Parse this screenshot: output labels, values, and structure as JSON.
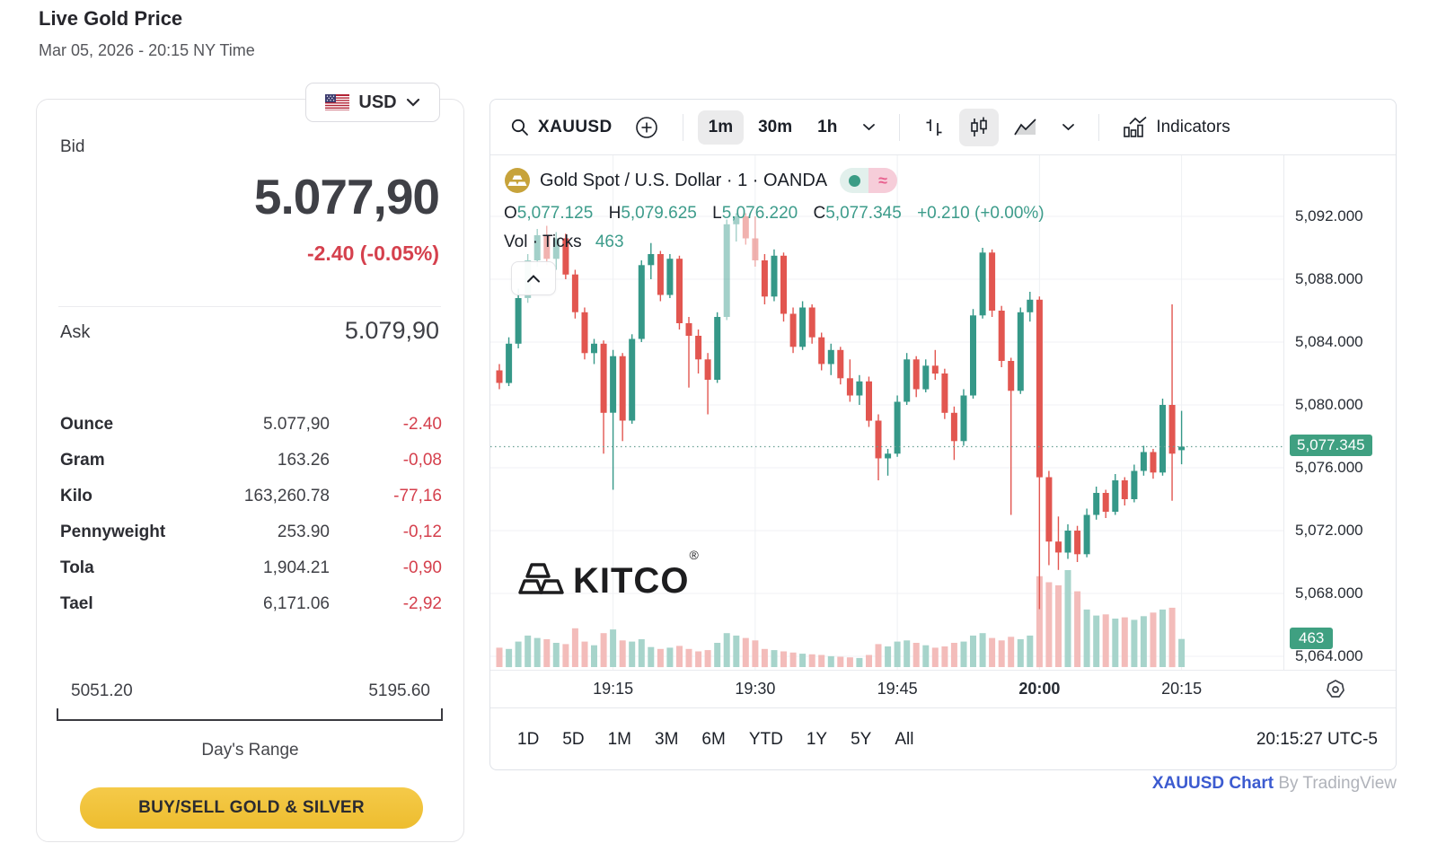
{
  "header": {
    "title": "Live Gold Price",
    "date": "Mar 05, 2026 - 20:15 NY Time"
  },
  "currency_selector": {
    "code": "USD"
  },
  "quote": {
    "bid_label": "Bid",
    "bid": "5.077,90",
    "change": "-2.40 (-0.05%)",
    "ask_label": "Ask",
    "ask": "5.079,90",
    "units": [
      {
        "label": "Ounce",
        "value": "5.077,90",
        "change": "-2.40"
      },
      {
        "label": "Gram",
        "value": "163.26",
        "change": "-0,08"
      },
      {
        "label": "Kilo",
        "value": "163,260.78",
        "change": "-77,16"
      },
      {
        "label": "Pennyweight",
        "value": "253.90",
        "change": "-0,12"
      },
      {
        "label": "Tola",
        "value": "1,904.21",
        "change": "-0,90"
      },
      {
        "label": "Tael",
        "value": "6,171.06",
        "change": "-2,92"
      }
    ],
    "range_low": "5051.20",
    "range_high": "5195.60",
    "range_label": "Day's Range",
    "buy_button": "BUY/SELL GOLD & SILVER"
  },
  "chart_widget": {
    "toolbar": {
      "symbol": "XAUUSD",
      "intervals": [
        "1m",
        "30m",
        "1h"
      ],
      "active_interval": "1m",
      "indicators_label": "Indicators"
    },
    "legend": {
      "title": "Gold Spot / U.S. Dollar · 1 · OANDA",
      "o_label": "O",
      "o": "5,077.125",
      "h_label": "H",
      "h": "5,079.625",
      "l_label": "L",
      "l": "5,076.220",
      "c_label": "C",
      "c": "5,077.345",
      "change": "+0.210 (+0.00%)",
      "vol_label": "Vol · Ticks",
      "vol": "463"
    },
    "watermark": "KITCO",
    "ranges": [
      "1D",
      "5D",
      "1M",
      "3M",
      "6M",
      "YTD",
      "1Y",
      "5Y",
      "All"
    ],
    "clock": "20:15:27 UTC-5",
    "attribution_link": "XAUUSD Chart",
    "attribution_rest": "By TradingView"
  },
  "chart_data": {
    "type": "candlestick",
    "symbol": "XAUUSD",
    "interval": "1m",
    "exchange": "OANDA",
    "title": "Gold Spot / U.S. Dollar",
    "y_axis": {
      "top": 5092,
      "bottom": 5064,
      "step": 4,
      "labels": [
        "5,092.000",
        "5,088.000",
        "5,084.000",
        "5,080.000",
        "5,076.000",
        "5,072.000",
        "5,068.000",
        "5,064.000"
      ]
    },
    "x_ticks": [
      {
        "index": 12,
        "label": "19:15"
      },
      {
        "index": 27,
        "label": "19:30"
      },
      {
        "index": 42,
        "label": "19:45"
      },
      {
        "index": 57,
        "label": "20:00",
        "bold": true
      },
      {
        "index": 72,
        "label": "20:15"
      }
    ],
    "last_price": 5077.345,
    "last_price_label": "5,077.345",
    "last_volume": 463,
    "last_volume_label": "463",
    "colors": {
      "up": "#359888",
      "down": "#e25650",
      "vol_up": "#a7d4cb",
      "vol_down": "#f3bcba",
      "badge": "#3fa081",
      "grid": "#f0f2f5",
      "current_line": "#68a094"
    },
    "candles": [
      [
        5082.2,
        5082.6,
        5081.0,
        5081.4,
        320
      ],
      [
        5081.4,
        5084.3,
        5081.2,
        5083.9,
        300
      ],
      [
        5083.9,
        5087.4,
        5083.6,
        5086.8,
        420
      ],
      [
        5086.8,
        5089.6,
        5086.5,
        5089.2,
        520,
        1
      ],
      [
        5089.2,
        5091.2,
        5088.8,
        5090.8,
        480,
        1
      ],
      [
        5090.8,
        5091.4,
        5088.9,
        5089.3,
        460,
        1
      ],
      [
        5089.3,
        5091.0,
        5088.6,
        5090.6,
        400,
        1
      ],
      [
        5090.6,
        5090.9,
        5088.0,
        5088.3,
        380
      ],
      [
        5088.3,
        5088.6,
        5085.5,
        5085.9,
        640
      ],
      [
        5085.9,
        5086.2,
        5082.9,
        5083.3,
        420
      ],
      [
        5083.3,
        5084.2,
        5082.6,
        5083.9,
        360
      ],
      [
        5083.9,
        5084.1,
        5076.9,
        5079.5,
        560
      ],
      [
        5079.5,
        5083.5,
        5074.6,
        5083.1,
        620
      ],
      [
        5083.1,
        5083.3,
        5077.7,
        5079.0,
        440
      ],
      [
        5079.0,
        5084.5,
        5078.8,
        5084.2,
        420
      ],
      [
        5084.2,
        5089.2,
        5084.0,
        5088.9,
        460
      ],
      [
        5088.9,
        5090.3,
        5088.0,
        5089.6,
        330
      ],
      [
        5089.6,
        5089.8,
        5086.6,
        5087.0,
        300
      ],
      [
        5087.0,
        5089.6,
        5086.8,
        5089.3,
        320
      ],
      [
        5089.3,
        5089.5,
        5084.8,
        5085.2,
        350
      ],
      [
        5085.2,
        5085.6,
        5081.1,
        5084.4,
        300
      ],
      [
        5084.4,
        5084.8,
        5082.0,
        5082.9,
        260
      ],
      [
        5082.9,
        5083.3,
        5079.4,
        5081.6,
        280
      ],
      [
        5081.6,
        5085.9,
        5081.4,
        5085.6,
        400
      ],
      [
        5085.6,
        5091.8,
        5085.4,
        5091.5,
        560,
        1
      ],
      [
        5091.5,
        5092.2,
        5090.4,
        5092.0,
        520,
        1
      ],
      [
        5092.0,
        5092.2,
        5090.2,
        5090.6,
        480,
        1
      ],
      [
        5090.6,
        5092.0,
        5088.8,
        5089.2,
        440,
        1
      ],
      [
        5089.2,
        5089.6,
        5086.4,
        5086.9,
        300
      ],
      [
        5086.9,
        5089.9,
        5086.6,
        5089.5,
        280
      ],
      [
        5089.5,
        5089.7,
        5085.3,
        5085.8,
        260
      ],
      [
        5085.8,
        5086.2,
        5083.3,
        5083.7,
        240
      ],
      [
        5083.7,
        5086.6,
        5083.5,
        5086.2,
        220
      ],
      [
        5086.2,
        5086.4,
        5083.9,
        5084.3,
        210
      ],
      [
        5084.3,
        5084.6,
        5082.2,
        5082.6,
        200
      ],
      [
        5082.6,
        5083.9,
        5081.9,
        5083.5,
        180
      ],
      [
        5083.5,
        5083.7,
        5081.3,
        5081.7,
        170
      ],
      [
        5081.7,
        5082.9,
        5080.2,
        5080.6,
        160
      ],
      [
        5080.6,
        5081.9,
        5080.0,
        5081.5,
        150
      ],
      [
        5081.5,
        5081.8,
        5078.6,
        5079.0,
        200
      ],
      [
        5079.0,
        5079.4,
        5075.2,
        5076.6,
        380
      ],
      [
        5076.6,
        5077.2,
        5075.5,
        5076.9,
        340
      ],
      [
        5076.9,
        5080.6,
        5076.7,
        5080.2,
        420
      ],
      [
        5080.2,
        5083.3,
        5080.0,
        5082.9,
        440
      ],
      [
        5082.9,
        5083.1,
        5080.5,
        5081.0,
        400
      ],
      [
        5081.0,
        5082.9,
        5080.8,
        5082.5,
        360
      ],
      [
        5082.5,
        5083.5,
        5081.6,
        5082.0,
        320
      ],
      [
        5082.0,
        5082.3,
        5079.1,
        5079.5,
        340
      ],
      [
        5079.5,
        5079.9,
        5076.5,
        5077.7,
        400
      ],
      [
        5077.7,
        5081.0,
        5077.4,
        5080.6,
        420
      ],
      [
        5080.6,
        5086.1,
        5080.4,
        5085.7,
        520
      ],
      [
        5085.7,
        5090.0,
        5085.5,
        5089.7,
        560
      ],
      [
        5089.7,
        5089.9,
        5085.6,
        5086.0,
        480
      ],
      [
        5086.0,
        5086.3,
        5082.4,
        5082.8,
        440
      ],
      [
        5082.8,
        5083.0,
        5073.0,
        5080.9,
        500
      ],
      [
        5080.9,
        5086.2,
        5080.7,
        5085.9,
        460
      ],
      [
        5085.9,
        5087.2,
        5085.3,
        5086.7,
        520
      ],
      [
        5086.7,
        5086.9,
        5067.0,
        5075.4,
        1500
      ],
      [
        5075.4,
        5075.8,
        5069.8,
        5071.3,
        1400
      ],
      [
        5071.3,
        5072.9,
        5069.5,
        5070.6,
        1350
      ],
      [
        5070.6,
        5072.4,
        5070.2,
        5072.0,
        1600
      ],
      [
        5072.0,
        5072.3,
        5070.0,
        5070.5,
        1250
      ],
      [
        5070.5,
        5073.4,
        5070.3,
        5073.0,
        950
      ],
      [
        5073.0,
        5074.8,
        5072.7,
        5074.4,
        850
      ],
      [
        5074.4,
        5074.6,
        5072.8,
        5073.2,
        870
      ],
      [
        5073.2,
        5075.6,
        5073.0,
        5075.2,
        800
      ],
      [
        5075.2,
        5075.4,
        5073.6,
        5074.0,
        820
      ],
      [
        5074.0,
        5076.2,
        5073.8,
        5075.8,
        780
      ],
      [
        5075.8,
        5077.4,
        5075.5,
        5077.0,
        840
      ],
      [
        5077.0,
        5077.2,
        5075.3,
        5075.7,
        900
      ],
      [
        5075.7,
        5080.4,
        5075.5,
        5080.0,
        950
      ],
      [
        5080.0,
        5086.4,
        5073.9,
        5076.9,
        980
      ],
      [
        5077.125,
        5079.625,
        5076.22,
        5077.345,
        463
      ]
    ]
  }
}
